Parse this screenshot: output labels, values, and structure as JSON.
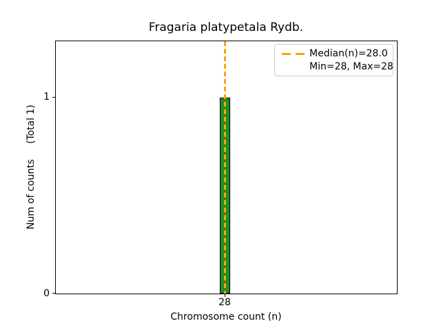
{
  "chart_data": {
    "type": "bar",
    "title": "Fragaria platypetala Rydb.",
    "xlabel": "Chromosome count (n)",
    "ylabel": "Num of counts     (Total 1)",
    "categories": [
      "28"
    ],
    "values": [
      1
    ],
    "total_counts": 1,
    "median_n": 28.0,
    "min_n": 28,
    "max_n": 28,
    "x_tick_labels": [
      "28"
    ],
    "y_tick_labels": [
      "0",
      "1"
    ],
    "ylim": [
      0,
      1.29
    ],
    "grid": false,
    "legend": {
      "position": "upper right",
      "entries": [
        {
          "label": "Median(n)=28.0",
          "marker": "orange-dashed-line"
        },
        {
          "label": "Min=28, Max=28",
          "marker": "none"
        }
      ]
    },
    "colors": {
      "bar_fill": "#228B22",
      "bar_edge": "#000000",
      "median_line": "#FFA500",
      "axis": "#000000",
      "legend_border": "#cccccc",
      "text": "#000000",
      "background": "#ffffff"
    }
  }
}
